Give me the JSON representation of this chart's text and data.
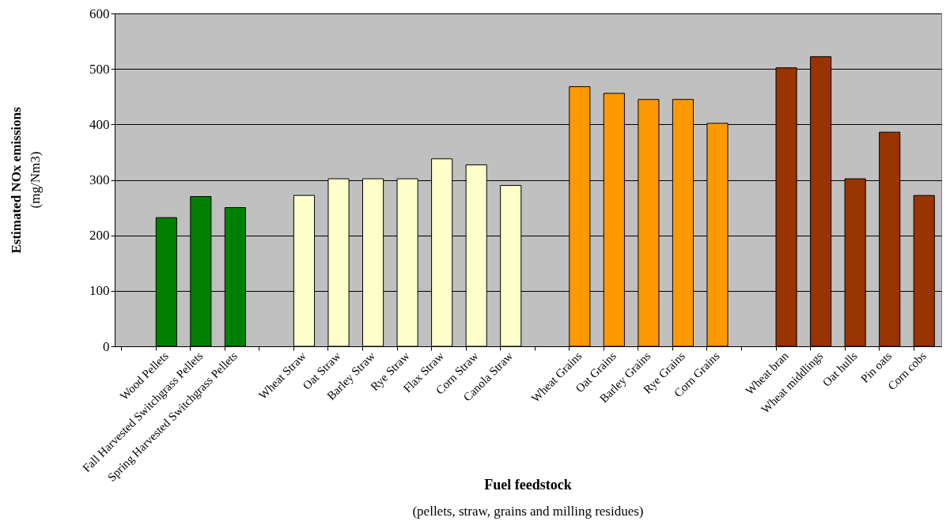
{
  "chart_data": {
    "type": "bar",
    "xlabel": "Fuel feedstock",
    "ylabel": "Estimated NOx emissions",
    "annotations": [
      "(mg/Nm3)",
      "(pellets, straw, grains and milling residues)"
    ],
    "categories": [
      null,
      "Wood Pellets",
      "Fall Harvested Switchgrass Pellets",
      "Spring Harvested Switchgrass Pellets",
      null,
      "Wheat Straw",
      "Oat Straw",
      "Barley Straw",
      "Rye Straw",
      "Flax Straw",
      "Corn Straw",
      "Canola Straw",
      null,
      "Wheat Grains",
      "Oat Grains",
      "Barley Grains",
      "Rye Grains",
      "Corn Grains",
      null,
      "Wheat bran",
      "Wheat middlings",
      "Oat hulls",
      "Pin oats",
      "Corn cobs"
    ],
    "values": [
      null,
      232,
      270,
      250,
      null,
      272,
      302,
      302,
      302,
      338,
      327,
      290,
      null,
      468,
      456,
      445,
      445,
      402,
      null,
      502,
      522,
      302,
      386,
      272
    ],
    "colors": [
      null,
      "#008000",
      "#008000",
      "#008000",
      null,
      "#ffffcc",
      "#ffffcc",
      "#ffffcc",
      "#ffffcc",
      "#ffffcc",
      "#ffffcc",
      "#ffffcc",
      null,
      "#ff9900",
      "#ff9900",
      "#ff9900",
      "#ff9900",
      "#ff9900",
      null,
      "#993300",
      "#993300",
      "#993300",
      "#993300",
      "#993300"
    ],
    "ylim": [
      0,
      600
    ],
    "yticks": [
      0,
      100,
      200,
      300,
      400,
      500,
      600
    ],
    "grid": "y"
  }
}
